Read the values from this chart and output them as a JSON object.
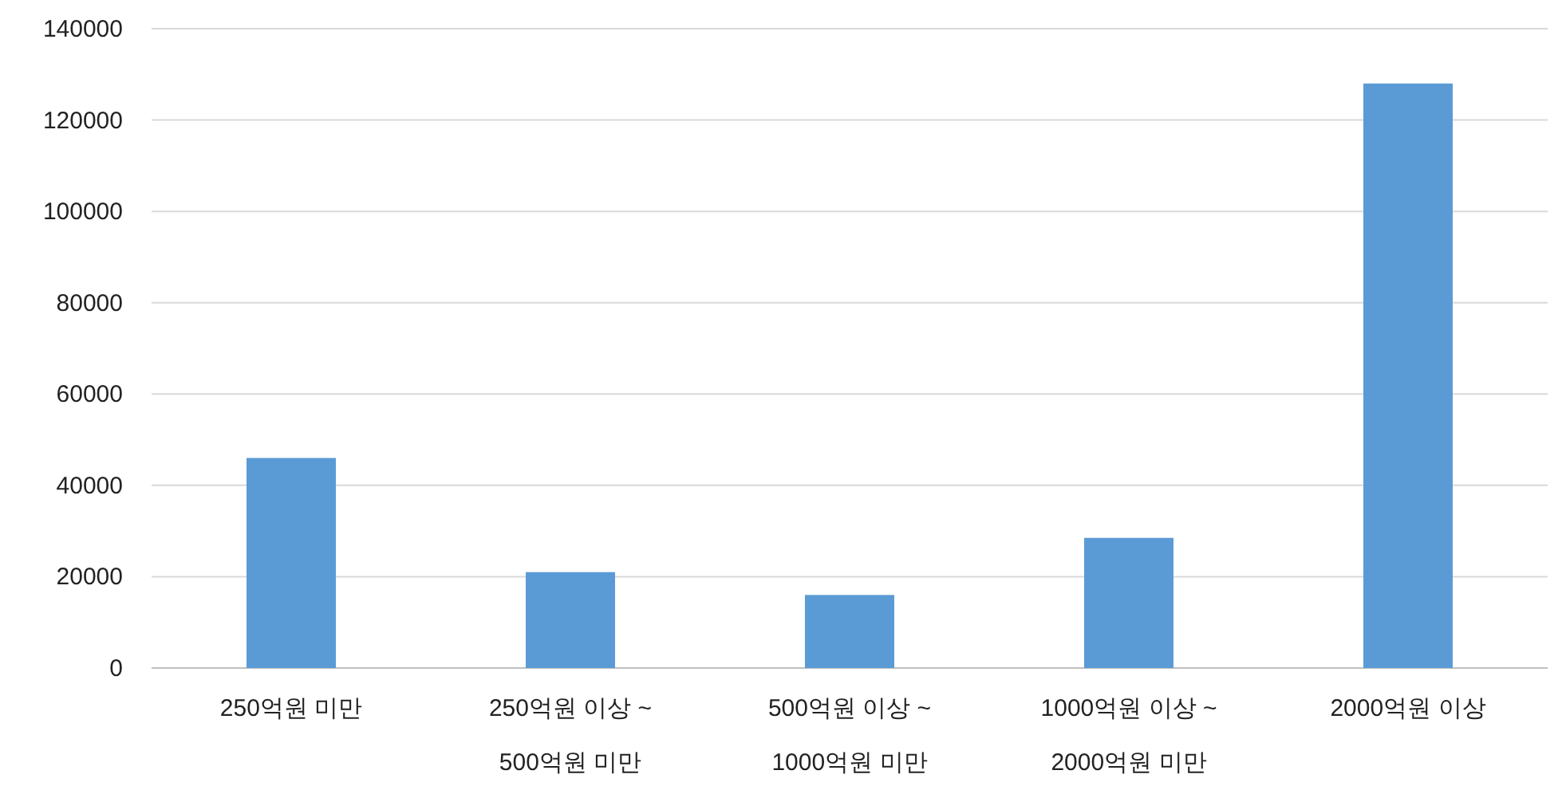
{
  "chart_data": {
    "type": "bar",
    "categories": [
      "250억원 미만",
      "250억원 이상 ~ 500억원 미만",
      "500억원 이상 ~ 1000억원 미만",
      "1000억원 이상 ~ 2000억원 미만",
      "2000억원 이상"
    ],
    "values": [
      46000,
      21000,
      16000,
      28500,
      128000
    ],
    "color": "#5b9bd5",
    "ylim": [
      0,
      140000
    ],
    "yticks": [
      0,
      20000,
      40000,
      60000,
      80000,
      100000,
      120000,
      140000
    ],
    "grid": "y"
  }
}
